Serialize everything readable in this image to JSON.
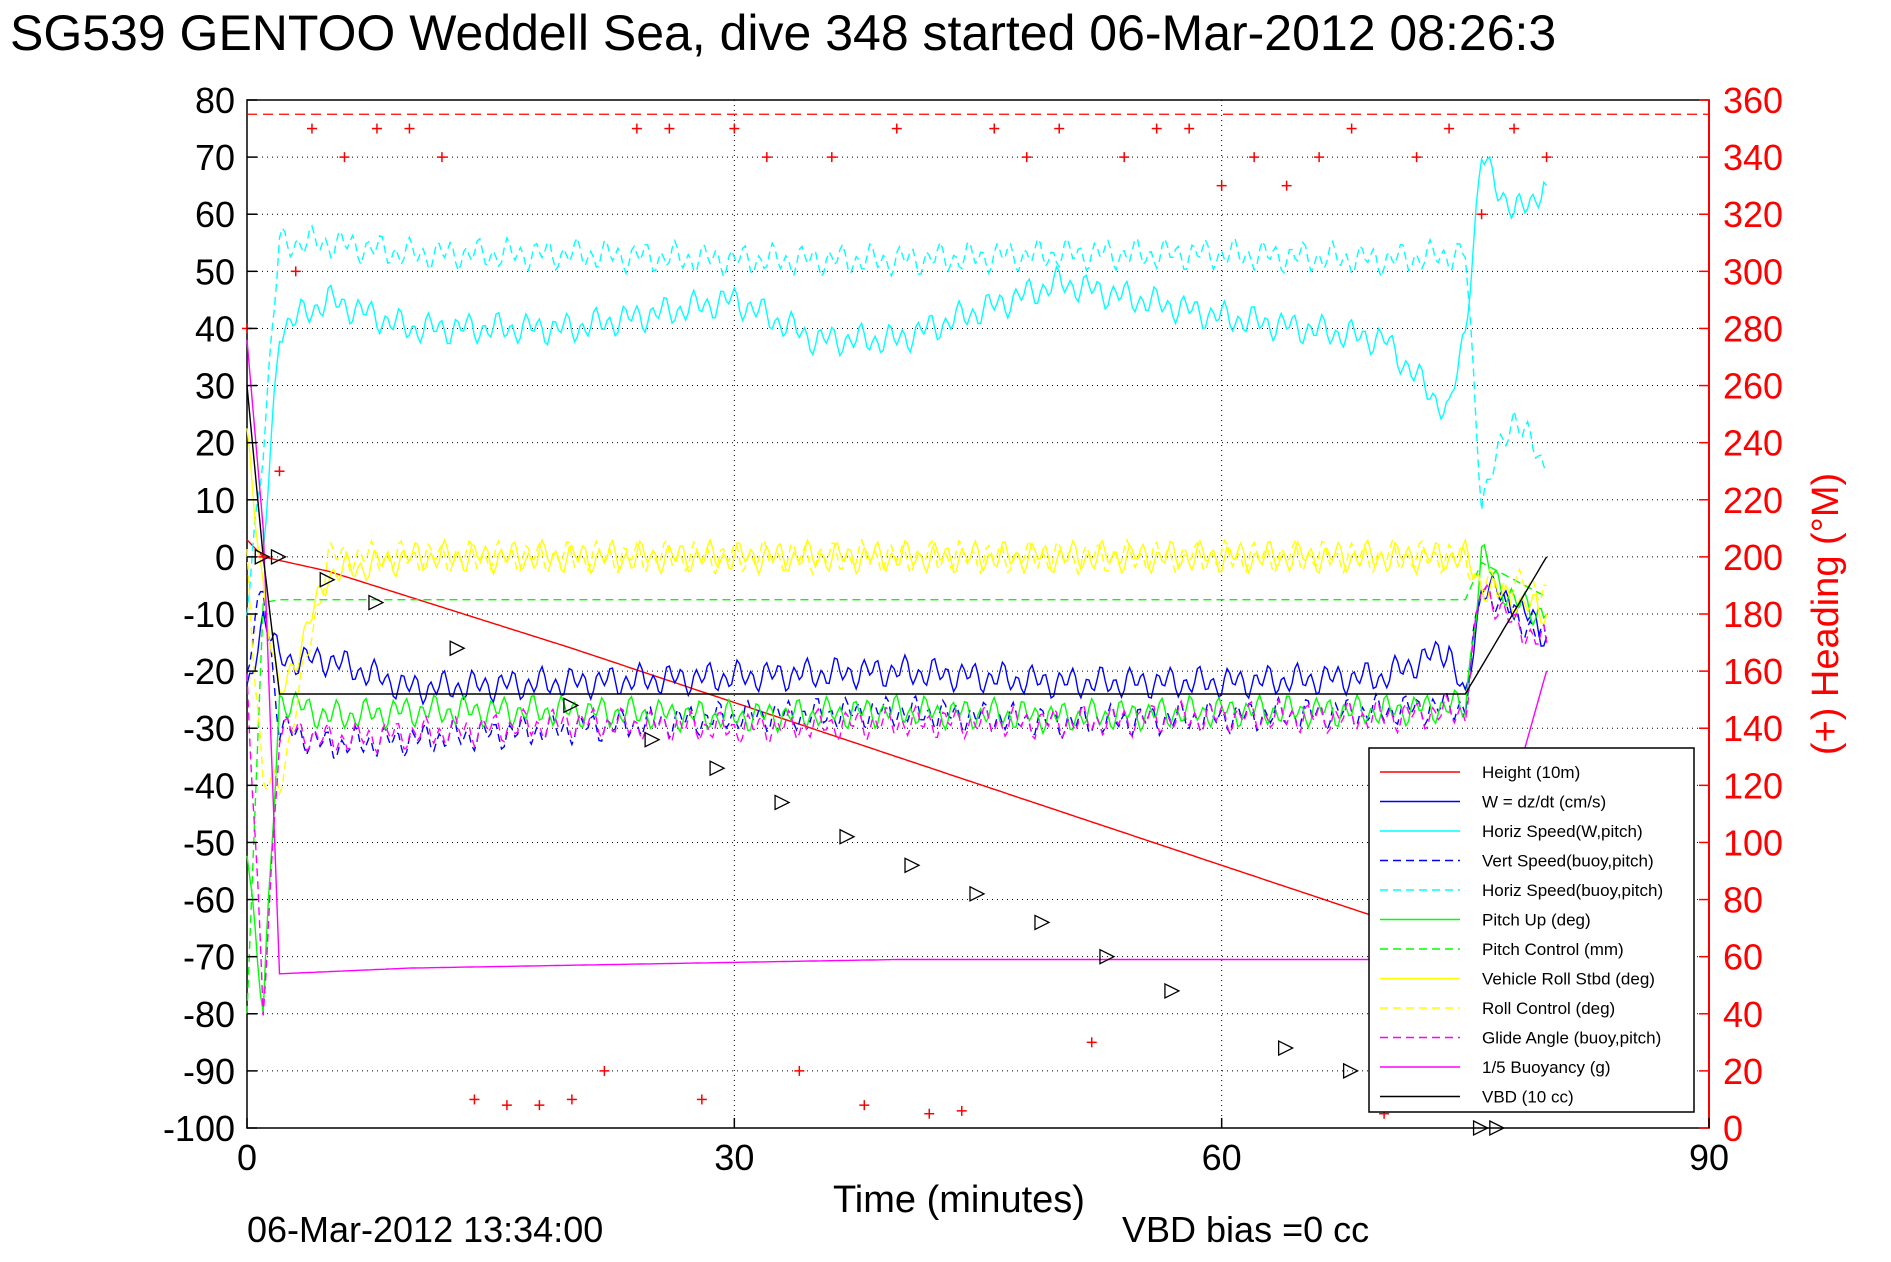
{
  "chart_data": {
    "type": "line",
    "title": "SG539 GENTOO Weddell Sea, dive 348 started 06-Mar-2012 08:26:3",
    "xlabel": "Time (minutes)",
    "ylabel_right": "(+) Heading (°M)",
    "footer_left": "06-Mar-2012 13:34:00",
    "footer_right": "VBD bias =0 cc",
    "xlim": [
      0,
      90
    ],
    "ylim": [
      -100,
      80
    ],
    "y2lim": [
      0,
      360
    ],
    "x_ticks": [
      "0",
      "30",
      "60",
      "90"
    ],
    "y_ticks": [
      "80",
      "70",
      "60",
      "50",
      "40",
      "30",
      "20",
      "10",
      "0",
      "-10",
      "-20",
      "-30",
      "-40",
      "-50",
      "-60",
      "-70",
      "-80",
      "-90",
      "-100"
    ],
    "y2_ticks": [
      "360",
      "340",
      "320",
      "300",
      "280",
      "260",
      "240",
      "220",
      "200",
      "180",
      "160",
      "140",
      "120",
      "100",
      "80",
      "60",
      "40",
      "20",
      "0"
    ],
    "grid": true,
    "legend_position": "bottom-right",
    "colors": {
      "height": "#ff0000",
      "w": "#0000ff",
      "horiz": "#00ffff",
      "pitch": "#00ff00",
      "roll": "#ffff00",
      "glide": "#ff00ff",
      "buoy": "#ff00ff",
      "vbd": "#000000",
      "heading": "#ff0000"
    },
    "series": [
      {
        "name": "Height (10m)",
        "color": "#ff0000",
        "style": "solid",
        "x": [
          0,
          1,
          5,
          10,
          20,
          30,
          40,
          50,
          60,
          70,
          75,
          76
        ],
        "y": [
          3,
          0,
          -2.5,
          -7,
          -16,
          -25.5,
          -35,
          -44.5,
          -54,
          -63.5,
          -67.3,
          -68
        ]
      },
      {
        "name": "W = dz/dt (cm/s)",
        "color": "#0000ff",
        "style": "solid",
        "x": [
          0,
          1,
          2,
          5,
          10,
          20,
          30,
          40,
          50,
          60,
          70,
          74,
          75,
          76,
          78,
          80
        ],
        "y": [
          -25,
          -10,
          -18,
          -18,
          -23,
          -22,
          -21,
          -20,
          -22,
          -22,
          -21,
          -16,
          -26,
          -5,
          -8,
          -14
        ]
      },
      {
        "name": "Horiz Speed(W,pitch)",
        "color": "#00ffff",
        "style": "solid",
        "x": [
          1,
          2,
          5,
          10,
          20,
          30,
          35,
          40,
          50,
          60,
          70,
          74,
          75,
          76,
          78,
          80
        ],
        "y": [
          0,
          40,
          45,
          40,
          40,
          45,
          38,
          38,
          48,
          42,
          38,
          25,
          40,
          70,
          60,
          65
        ]
      },
      {
        "name": "Vert Speed(buoy,pitch)",
        "color": "#0000ff",
        "style": "dashed",
        "x": [
          0,
          1,
          2,
          5,
          10,
          20,
          30,
          40,
          50,
          60,
          70,
          75,
          76,
          78,
          80
        ],
        "y": [
          -20,
          -5,
          -30,
          -33,
          -32,
          -30,
          -28,
          -27,
          -29,
          -28,
          -27,
          -26,
          -5,
          -10,
          -15
        ]
      },
      {
        "name": "Horiz Speed(buoy,pitch)",
        "color": "#00ffff",
        "style": "dashed",
        "x": [
          0,
          1,
          2,
          5,
          10,
          20,
          30,
          40,
          50,
          60,
          70,
          75,
          76,
          78,
          80
        ],
        "y": [
          -10,
          20,
          55,
          55,
          53,
          53,
          52,
          52,
          53,
          53,
          52,
          53,
          10,
          25,
          15
        ]
      },
      {
        "name": "Pitch Up (deg)",
        "color": "#00ff00",
        "style": "solid",
        "x": [
          0,
          1,
          2,
          5,
          10,
          20,
          30,
          40,
          50,
          60,
          70,
          75,
          76,
          78,
          80
        ],
        "y": [
          -50,
          -80,
          -25,
          -28,
          -27,
          -27,
          -28,
          -27,
          -28,
          -27,
          -27,
          -26,
          0,
          -8,
          -10
        ]
      },
      {
        "name": "Pitch Control (mm)",
        "color": "#00ff00",
        "style": "dashed",
        "x": [
          0,
          1,
          2,
          10,
          20,
          30,
          40,
          50,
          60,
          70,
          75,
          76,
          80
        ],
        "y": [
          -80,
          -8,
          -7.5,
          -7.5,
          -7.5,
          -7.5,
          -7.5,
          -7.5,
          -7.5,
          -7.5,
          -7.5,
          -1,
          -7
        ]
      },
      {
        "name": "Vehicle Roll Stbd (deg)",
        "color": "#ffff00",
        "style": "solid",
        "x": [
          0,
          1,
          2,
          5,
          10,
          20,
          30,
          40,
          50,
          60,
          70,
          75,
          76,
          80
        ],
        "y": [
          20,
          -5,
          -25,
          -3,
          0,
          0,
          0,
          0,
          0,
          0,
          0,
          0,
          -5,
          -10
        ]
      },
      {
        "name": "Roll Control (deg)",
        "color": "#ffff00",
        "style": "dashed",
        "x": [
          0,
          1,
          2,
          5,
          10,
          20,
          30,
          40,
          50,
          60,
          70,
          75,
          76,
          80
        ],
        "y": [
          0,
          -40,
          -40,
          0,
          0,
          0,
          0,
          0,
          0,
          0,
          0,
          0,
          -5,
          -5
        ]
      },
      {
        "name": "Glide Angle (buoy,pitch)",
        "color": "#ff00ff",
        "style": "dashed",
        "x": [
          0,
          1,
          2,
          5,
          10,
          20,
          30,
          40,
          50,
          60,
          70,
          75,
          76,
          78,
          80
        ],
        "y": [
          -20,
          -80,
          -30,
          -32,
          -31,
          -29,
          -30,
          -29,
          -29,
          -28,
          -28,
          -27,
          -5,
          -12,
          -15
        ]
      },
      {
        "name": "1/5 Buoyancy (g)",
        "color": "#ff00ff",
        "style": "solid",
        "x": [
          0,
          1,
          2,
          10,
          20,
          30,
          40,
          50,
          60,
          70,
          75,
          80
        ],
        "y": [
          38,
          5,
          -73,
          -72,
          -71.5,
          -71,
          -70.5,
          -70.5,
          -70.5,
          -70.5,
          -70.5,
          -20
        ]
      },
      {
        "name": "VBD (10 cc)",
        "color": "#000000",
        "style": "solid",
        "x": [
          0,
          1,
          2,
          10,
          20,
          30,
          40,
          50,
          60,
          70,
          75,
          80
        ],
        "y": [
          30,
          0,
          -24,
          -24,
          -24,
          -24,
          -24,
          -24,
          -24,
          -24,
          -24,
          0
        ]
      }
    ],
    "heading_points": {
      "name": "(+) Heading (°M)",
      "axis": "right",
      "color": "#ff0000",
      "marker": "+",
      "x": [
        0,
        1,
        2,
        3,
        4,
        6,
        8,
        10,
        12,
        14,
        16,
        18,
        20,
        22,
        24,
        26,
        28,
        30,
        32,
        34,
        36,
        38,
        40,
        42,
        44,
        46,
        48,
        50,
        52,
        54,
        56,
        58,
        60,
        62,
        64,
        66,
        68,
        70,
        72,
        74,
        76,
        78,
        80
      ],
      "y": [
        280,
        200,
        230,
        300,
        350,
        340,
        350,
        350,
        340,
        10,
        8,
        8,
        10,
        20,
        350,
        350,
        10,
        350,
        340,
        20,
        340,
        8,
        350,
        5,
        6,
        350,
        340,
        350,
        30,
        340,
        350,
        350,
        330,
        340,
        330,
        340,
        350,
        5,
        340,
        350,
        320,
        350,
        340
      ]
    },
    "vbd_markers": {
      "name": "Height markers",
      "x": [
        1,
        2,
        5,
        8,
        13,
        20,
        25,
        29,
        33,
        37,
        41,
        45,
        49,
        53,
        57,
        64,
        68,
        76,
        77
      ],
      "y": [
        0,
        0,
        -4,
        -8,
        -16,
        -26,
        -32,
        -37,
        -43,
        -49,
        -54,
        -59,
        -64,
        -70,
        -76,
        -86,
        -90,
        -100,
        -100
      ]
    },
    "legend": [
      {
        "label": "Height (10m)",
        "color": "#ff0000",
        "style": "solid"
      },
      {
        "label": "W = dz/dt (cm/s)",
        "color": "#0000ff",
        "style": "solid"
      },
      {
        "label": "Horiz Speed(W,pitch)",
        "color": "#00ffff",
        "style": "solid"
      },
      {
        "label": "Vert Speed(buoy,pitch)",
        "color": "#0000ff",
        "style": "dashed"
      },
      {
        "label": "Horiz Speed(buoy,pitch)",
        "color": "#00ffff",
        "style": "dashed"
      },
      {
        "label": "Pitch Up (deg)",
        "color": "#00ff00",
        "style": "solid"
      },
      {
        "label": "Pitch Control (mm)",
        "color": "#00ff00",
        "style": "dashed"
      },
      {
        "label": "Vehicle Roll Stbd (deg)",
        "color": "#ffff00",
        "style": "solid"
      },
      {
        "label": "Roll Control (deg)",
        "color": "#ffff00",
        "style": "dashed"
      },
      {
        "label": "Glide Angle (buoy,pitch)",
        "color": "#ff00ff",
        "style": "dashed"
      },
      {
        "label": "1/5 Buoyancy (g)",
        "color": "#ff00ff",
        "style": "solid"
      },
      {
        "label": "VBD (10 cc)",
        "color": "#000000",
        "style": "solid"
      }
    ]
  }
}
